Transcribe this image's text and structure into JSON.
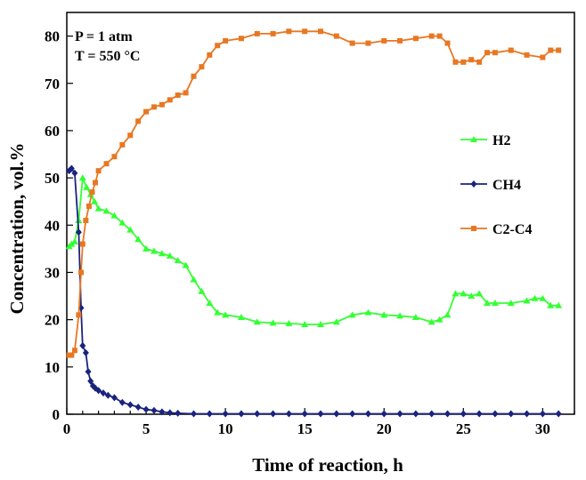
{
  "chart_data": {
    "type": "line",
    "xlabel": "Time of reaction, h",
    "ylabel": "Concentration, vol.%",
    "xlim": [
      0,
      32
    ],
    "ylim": [
      0,
      85
    ],
    "xticks": [
      0,
      5,
      10,
      15,
      20,
      25,
      30
    ],
    "yticks": [
      0,
      10,
      20,
      30,
      40,
      50,
      60,
      70,
      80
    ],
    "grid": false,
    "legend_position": "right-middle",
    "annotations": [
      "P = 1 atm",
      "T = 550 °C"
    ],
    "series": [
      {
        "name": "H2",
        "color": "#33ff33",
        "marker": "triangle",
        "x": [
          0.15,
          0.3,
          0.5,
          0.75,
          1.0,
          1.25,
          1.5,
          1.75,
          2.0,
          2.5,
          3.0,
          3.5,
          4.0,
          4.5,
          5.0,
          5.5,
          6.0,
          6.5,
          7.0,
          7.5,
          8.0,
          8.5,
          9.0,
          9.5,
          10.0,
          11.0,
          12.0,
          13.0,
          14.0,
          15.0,
          16.0,
          17.0,
          18.0,
          19.0,
          20.0,
          21.0,
          22.0,
          23.0,
          23.5,
          24.0,
          24.5,
          25.0,
          25.5,
          26.0,
          26.5,
          27.0,
          28.0,
          29.0,
          29.5,
          30.0,
          30.5,
          31.0
        ],
        "y": [
          35.5,
          36,
          36.5,
          41,
          50,
          48,
          46.5,
          45,
          43.5,
          43,
          42,
          40.5,
          39,
          37,
          35,
          34.5,
          34,
          33.5,
          32.5,
          31.5,
          28.5,
          26,
          23.5,
          21.5,
          21,
          20.5,
          19.5,
          19.3,
          19.2,
          19,
          19,
          19.5,
          21,
          21.5,
          21,
          20.8,
          20.5,
          19.5,
          20,
          21,
          25.5,
          25.5,
          25,
          25.5,
          23.5,
          23.5,
          23.5,
          24,
          24.5,
          24.5,
          23,
          23
        ]
      },
      {
        "name": "CH4",
        "color": "#1a237e",
        "marker": "diamond",
        "x": [
          0.15,
          0.3,
          0.5,
          0.75,
          0.9,
          1.0,
          1.2,
          1.35,
          1.5,
          1.65,
          1.8,
          2.0,
          2.3,
          2.6,
          3.0,
          3.5,
          4.0,
          4.5,
          5.0,
          5.5,
          6.0,
          6.5,
          7.0,
          8.0,
          9.0,
          10.0,
          11.0,
          12.0,
          13.0,
          14.0,
          15.0,
          16.0,
          17.0,
          18.0,
          19.0,
          20.0,
          21.0,
          22.0,
          23.0,
          24.0,
          25.0,
          26.0,
          27.0,
          28.0,
          29.0,
          30.0,
          31.0
        ],
        "y": [
          51.5,
          52,
          51,
          38.5,
          22.5,
          14.5,
          13,
          9,
          7,
          6,
          5.5,
          5,
          4.5,
          4,
          3.5,
          2.5,
          2,
          1.5,
          1,
          0.8,
          0.5,
          0.3,
          0.2,
          0.1,
          0.1,
          0.1,
          0.1,
          0.1,
          0.1,
          0.1,
          0.1,
          0.1,
          0.1,
          0.1,
          0.1,
          0.1,
          0.1,
          0.1,
          0.1,
          0.1,
          0.1,
          0.1,
          0.1,
          0.1,
          0.1,
          0.1,
          0.1
        ]
      },
      {
        "name": "C2-C4",
        "color": "#e87722",
        "marker": "square",
        "x": [
          0.15,
          0.3,
          0.5,
          0.75,
          0.9,
          1.0,
          1.2,
          1.4,
          1.6,
          1.8,
          2.0,
          2.5,
          3.0,
          3.5,
          4.0,
          4.5,
          5.0,
          5.5,
          6.0,
          6.5,
          7.0,
          7.5,
          8.0,
          8.5,
          9.0,
          9.5,
          10.0,
          11.0,
          12.0,
          13.0,
          14.0,
          15.0,
          16.0,
          17.0,
          18.0,
          19.0,
          20.0,
          21.0,
          22.0,
          23.0,
          23.5,
          24.0,
          24.5,
          25.0,
          25.5,
          26.0,
          26.5,
          27.0,
          28.0,
          29.0,
          30.0,
          30.5,
          31.0
        ],
        "y": [
          12.5,
          12.5,
          13.5,
          21,
          30,
          36,
          41,
          44,
          47,
          49,
          51.5,
          53,
          54.5,
          57,
          59,
          62,
          64,
          65,
          65.5,
          66.5,
          67.5,
          68,
          71.5,
          73.5,
          76,
          78,
          79,
          79.5,
          80.5,
          80.5,
          81,
          81,
          81,
          80,
          78.5,
          78.5,
          79,
          79,
          79.5,
          80,
          80,
          78.5,
          74.5,
          74.5,
          75,
          74.5,
          76.5,
          76.5,
          77,
          76,
          75.5,
          77,
          77
        ]
      }
    ]
  }
}
